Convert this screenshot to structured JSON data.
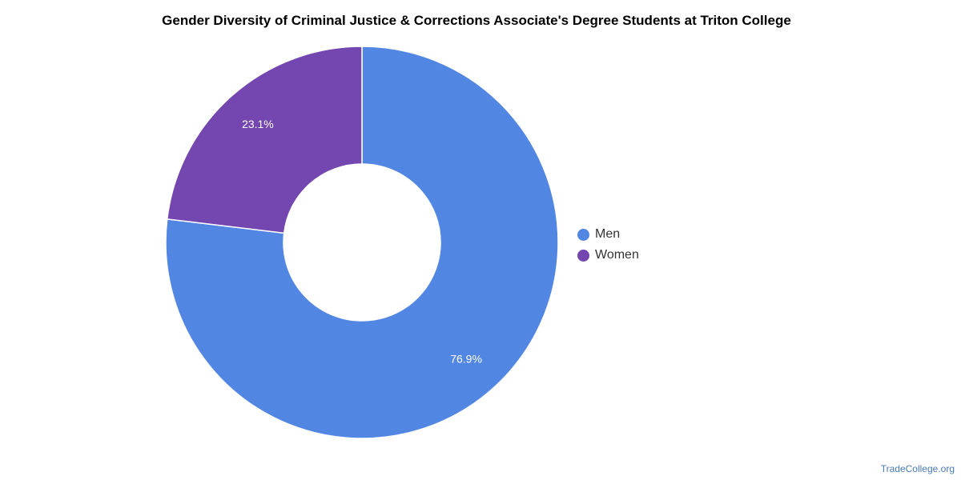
{
  "chart_data": {
    "type": "pie",
    "variant": "donut",
    "title": "Gender Diversity of Criminal Justice & Corrections Associate's Degree Students at Triton College",
    "slices": [
      {
        "label": "Men",
        "value": 76.9,
        "value_label": "76.9%",
        "color": "#5286e3"
      },
      {
        "label": "Women",
        "value": 23.1,
        "value_label": "23.1%",
        "color": "#7447b0"
      }
    ],
    "legend": {
      "position": "right",
      "items": [
        "Men",
        "Women"
      ]
    }
  },
  "footer": {
    "source": "TradeCollege.org"
  }
}
